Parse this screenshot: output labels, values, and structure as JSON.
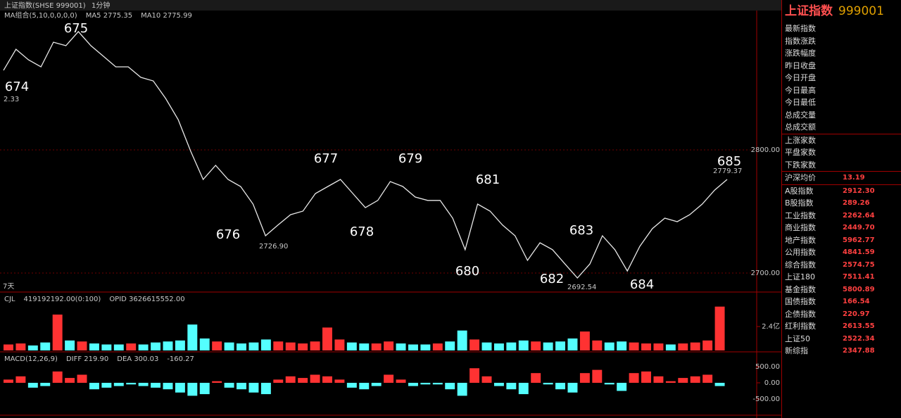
{
  "header": {
    "tab": "上证指数(SHSE 999001)",
    "interval": "1分钟"
  },
  "chart_data": [
    {
      "type": "line",
      "indicators": [
        "MA组合(5,10,0,0,0,0)",
        "MA5 2775.35",
        "MA10 2775.99"
      ],
      "color": "#e8e8e8",
      "values": [
        2864.6,
        2881.7,
        2873.1,
        2867.4,
        2887.4,
        2884.6,
        2896,
        2884.6,
        2876,
        2867.4,
        2867.4,
        2858.9,
        2856,
        2841.7,
        2824.6,
        2798.9,
        2776,
        2787.4,
        2776,
        2770.3,
        2756,
        2730.3,
        2739,
        2747.4,
        2750.3,
        2764.6,
        2770.3,
        2776,
        2764.6,
        2753.1,
        2759,
        2774.3,
        2770.3,
        2761.7,
        2759,
        2759,
        2744.6,
        2719,
        2756,
        2750.3,
        2738.9,
        2730.3,
        2710.3,
        2724.6,
        2719,
        2707.4,
        2696,
        2707.4,
        2730.3,
        2719,
        2701.7,
        2721.7,
        2736,
        2744.6,
        2741.7,
        2747.4,
        2756,
        2767.4,
        2776
      ],
      "ylim": [
        2684.6,
        2913.1
      ],
      "yticks": [
        {
          "value": 2800,
          "label": "2800.00"
        },
        {
          "value": 2700,
          "label": "2700.00"
        }
      ],
      "grid": true,
      "annotations": [
        "674",
        "675",
        "676",
        "677",
        "678",
        "679",
        "680",
        "681",
        "682",
        "683",
        "684",
        "685"
      ],
      "price_labels": [
        "2.33",
        "2726.90",
        "2692.54",
        "2779.37"
      ],
      "period_label": "7天"
    },
    {
      "type": "bar",
      "indicators": [
        "CJL",
        "419192192.00(0:100)",
        "OPID 3626615552.00"
      ],
      "up_color": "#ff3232",
      "down_color": "#54ffff",
      "values": [
        0.6,
        0.7,
        0.5,
        0.8,
        3.6,
        1.0,
        0.9,
        0.7,
        0.6,
        0.6,
        0.7,
        0.6,
        0.8,
        0.9,
        1.0,
        2.6,
        1.2,
        0.9,
        0.8,
        0.7,
        0.8,
        1.1,
        0.9,
        0.8,
        0.7,
        0.9,
        2.3,
        1.1,
        0.8,
        0.7,
        0.7,
        0.9,
        0.7,
        0.6,
        0.6,
        0.7,
        0.9,
        2.0,
        1.1,
        0.8,
        0.7,
        0.8,
        1.0,
        0.9,
        0.8,
        0.9,
        1.2,
        1.9,
        1.0,
        0.8,
        0.9,
        0.8,
        0.7,
        0.7,
        0.6,
        0.7,
        0.8,
        1.0,
        4.4
      ],
      "ylim": [
        0,
        5.65
      ],
      "yticks": [
        {
          "value": 2.4,
          "label": "2.4亿"
        }
      ]
    },
    {
      "type": "bar",
      "indicators": [
        "MACD(12,26,9)",
        "DIFF 219.90",
        "DEA 300.03",
        "-160.27"
      ],
      "up_color": "#ff3232",
      "down_color": "#54ffff",
      "values": [
        100,
        200,
        -150,
        -100,
        350,
        150,
        250,
        -200,
        -150,
        -100,
        -50,
        -100,
        -150,
        -200,
        -300,
        -400,
        -350,
        50,
        -150,
        -200,
        -300,
        -350,
        100,
        200,
        150,
        250,
        200,
        100,
        -150,
        -200,
        -100,
        250,
        100,
        -100,
        -50,
        -50,
        -200,
        -400,
        450,
        200,
        -100,
        -200,
        -350,
        300,
        -50,
        -200,
        -300,
        300,
        400,
        -50,
        -250,
        300,
        350,
        200,
        50,
        150,
        200,
        250,
        -100
      ],
      "ylim": [
        -1000,
        891
      ],
      "yticks": [
        {
          "value": 500,
          "label": "500.00"
        },
        {
          "value": 0,
          "label": "0.00"
        },
        {
          "value": -500,
          "label": "-500.00"
        }
      ]
    }
  ],
  "panel": {
    "name": "上证指数",
    "code": "999001",
    "stats": [
      "最新指数",
      "指数涨跌",
      "涨跌幅度",
      "昨日收盘",
      "今日开盘",
      "今日最高",
      "今日最低",
      "总成交量",
      "总成交额"
    ],
    "counts": [
      "上涨家数",
      "平盘家数",
      "下跌家数"
    ],
    "avg": {
      "label": "沪深均价",
      "value": "13.19"
    },
    "indices": [
      [
        "A股指数",
        "2912.30"
      ],
      [
        "B股指数",
        "289.26"
      ],
      [
        "工业指数",
        "2262.64"
      ],
      [
        "商业指数",
        "2449.70"
      ],
      [
        "地产指数",
        "5962.77"
      ],
      [
        "公用指数",
        "4841.59"
      ],
      [
        "综合指数",
        "2574.75"
      ],
      [
        "上证180",
        "7511.41"
      ],
      [
        "基金指数",
        "5800.89"
      ],
      [
        "国债指数",
        "166.54"
      ],
      [
        "企债指数",
        "220.97"
      ],
      [
        "红利指数",
        "2613.55"
      ],
      [
        "上证50",
        "2522.34"
      ],
      [
        "新综指",
        "2347.88"
      ]
    ]
  }
}
